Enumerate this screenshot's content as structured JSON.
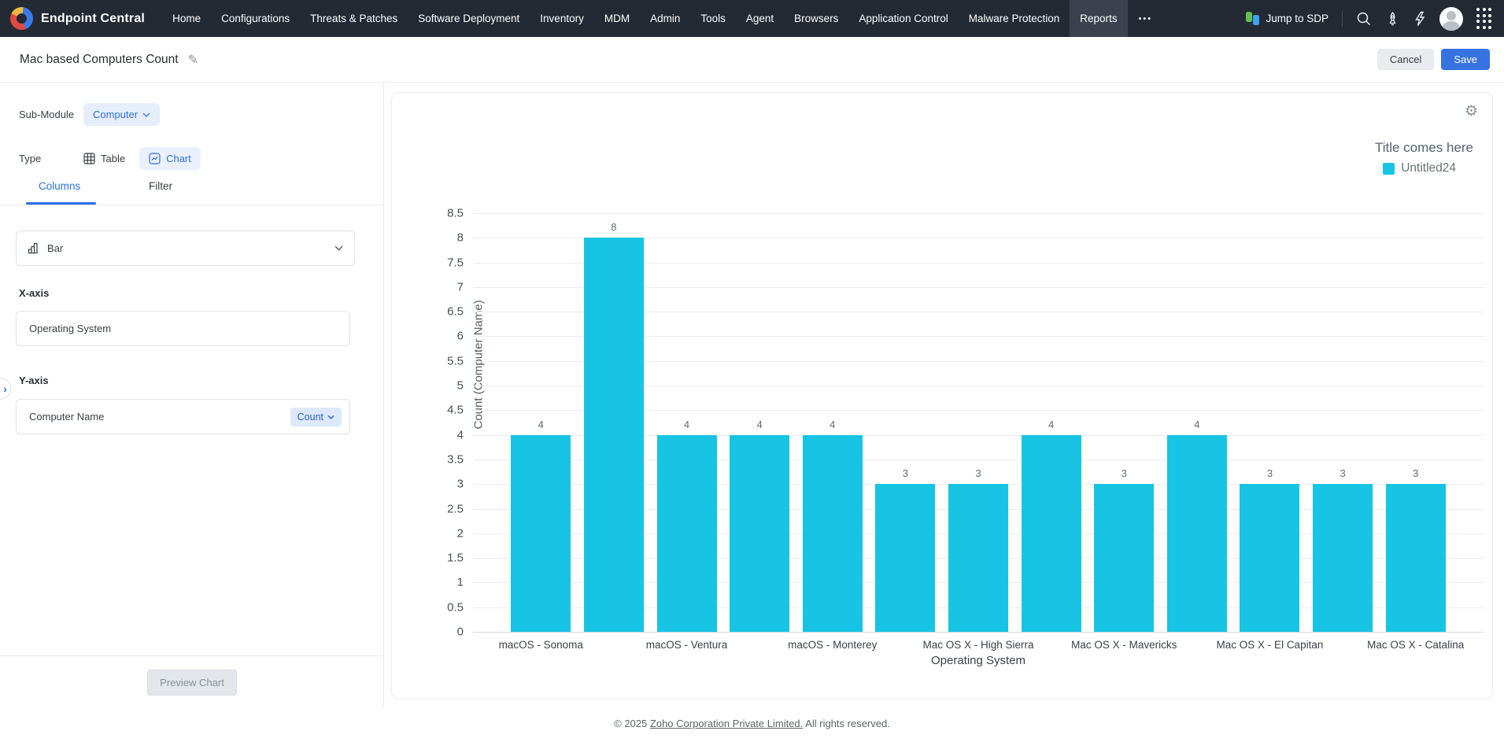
{
  "nav": {
    "brand": "Endpoint Central",
    "items": [
      "Home",
      "Configurations",
      "Threats & Patches",
      "Software Deployment",
      "Inventory",
      "MDM",
      "Admin",
      "Tools",
      "Agent",
      "Browsers",
      "Application Control",
      "Malware Protection",
      "Reports"
    ],
    "active_item": "Reports",
    "more_glyph": "•••",
    "jump_to_sdp_label": "Jump to SDP",
    "icons": [
      "jump-to-sdp-icon",
      "search-icon",
      "whats-new-rocket-icon",
      "quick-actions-lightning-icon",
      "avatar",
      "apps-grid-icon",
      "more-icon"
    ]
  },
  "header": {
    "title": "Mac based Computers Count",
    "edit_icon": "✎",
    "cancel_label": "Cancel",
    "save_label": "Save"
  },
  "panel": {
    "sub_module_label": "Sub-Module",
    "sub_module_value": "Computer",
    "type_label": "Type",
    "type_table_label": "Table",
    "type_chart_label": "Chart",
    "type_active": "Chart",
    "tab_columns": "Columns",
    "tab_filter": "Filter",
    "active_tab": "Columns",
    "chart_type_value": "Bar",
    "x_axis_label": "X-axis",
    "x_axis_value": "Operating System",
    "y_axis_label": "Y-axis",
    "y_axis_value": "Computer Name",
    "aggregate_value": "Count",
    "preview_button_label": "Preview Chart",
    "collapse_glyph": "›"
  },
  "chart_data": {
    "type": "bar",
    "title": "Title comes here",
    "legend": [
      "Untitled24"
    ],
    "legend_position": "top-right",
    "series_color": "#18c4e4",
    "values": [
      4,
      8,
      4,
      4,
      4,
      3,
      3,
      4,
      3,
      4,
      3,
      3,
      3
    ],
    "x_tick_labels": [
      "macOS - Sonoma",
      "macOS - Ventura",
      "macOS - Monterey",
      "Mac OS X - High Sierra",
      "Mac OS X - Mavericks",
      "Mac OS X - El Capitan",
      "Mac OS X - Catalina"
    ],
    "x_tick_positions": [
      0,
      2,
      4,
      6,
      8,
      10,
      12
    ],
    "xlabel": "Operating System",
    "ylabel": "Count (Computer Name)",
    "ylim": [
      0,
      8.5
    ],
    "ytick_step": 0.5,
    "grid": true
  },
  "footer": {
    "copyright_prefix": "© 2025 ",
    "link_text": "Zoho Corporation Private Limited.",
    "suffix": " All rights reserved."
  },
  "colors": {
    "accent_blue": "#2f6fe0",
    "save_blue": "#3672e0",
    "bar_cyan": "#18c4e4",
    "nav_bg": "#242a34"
  }
}
